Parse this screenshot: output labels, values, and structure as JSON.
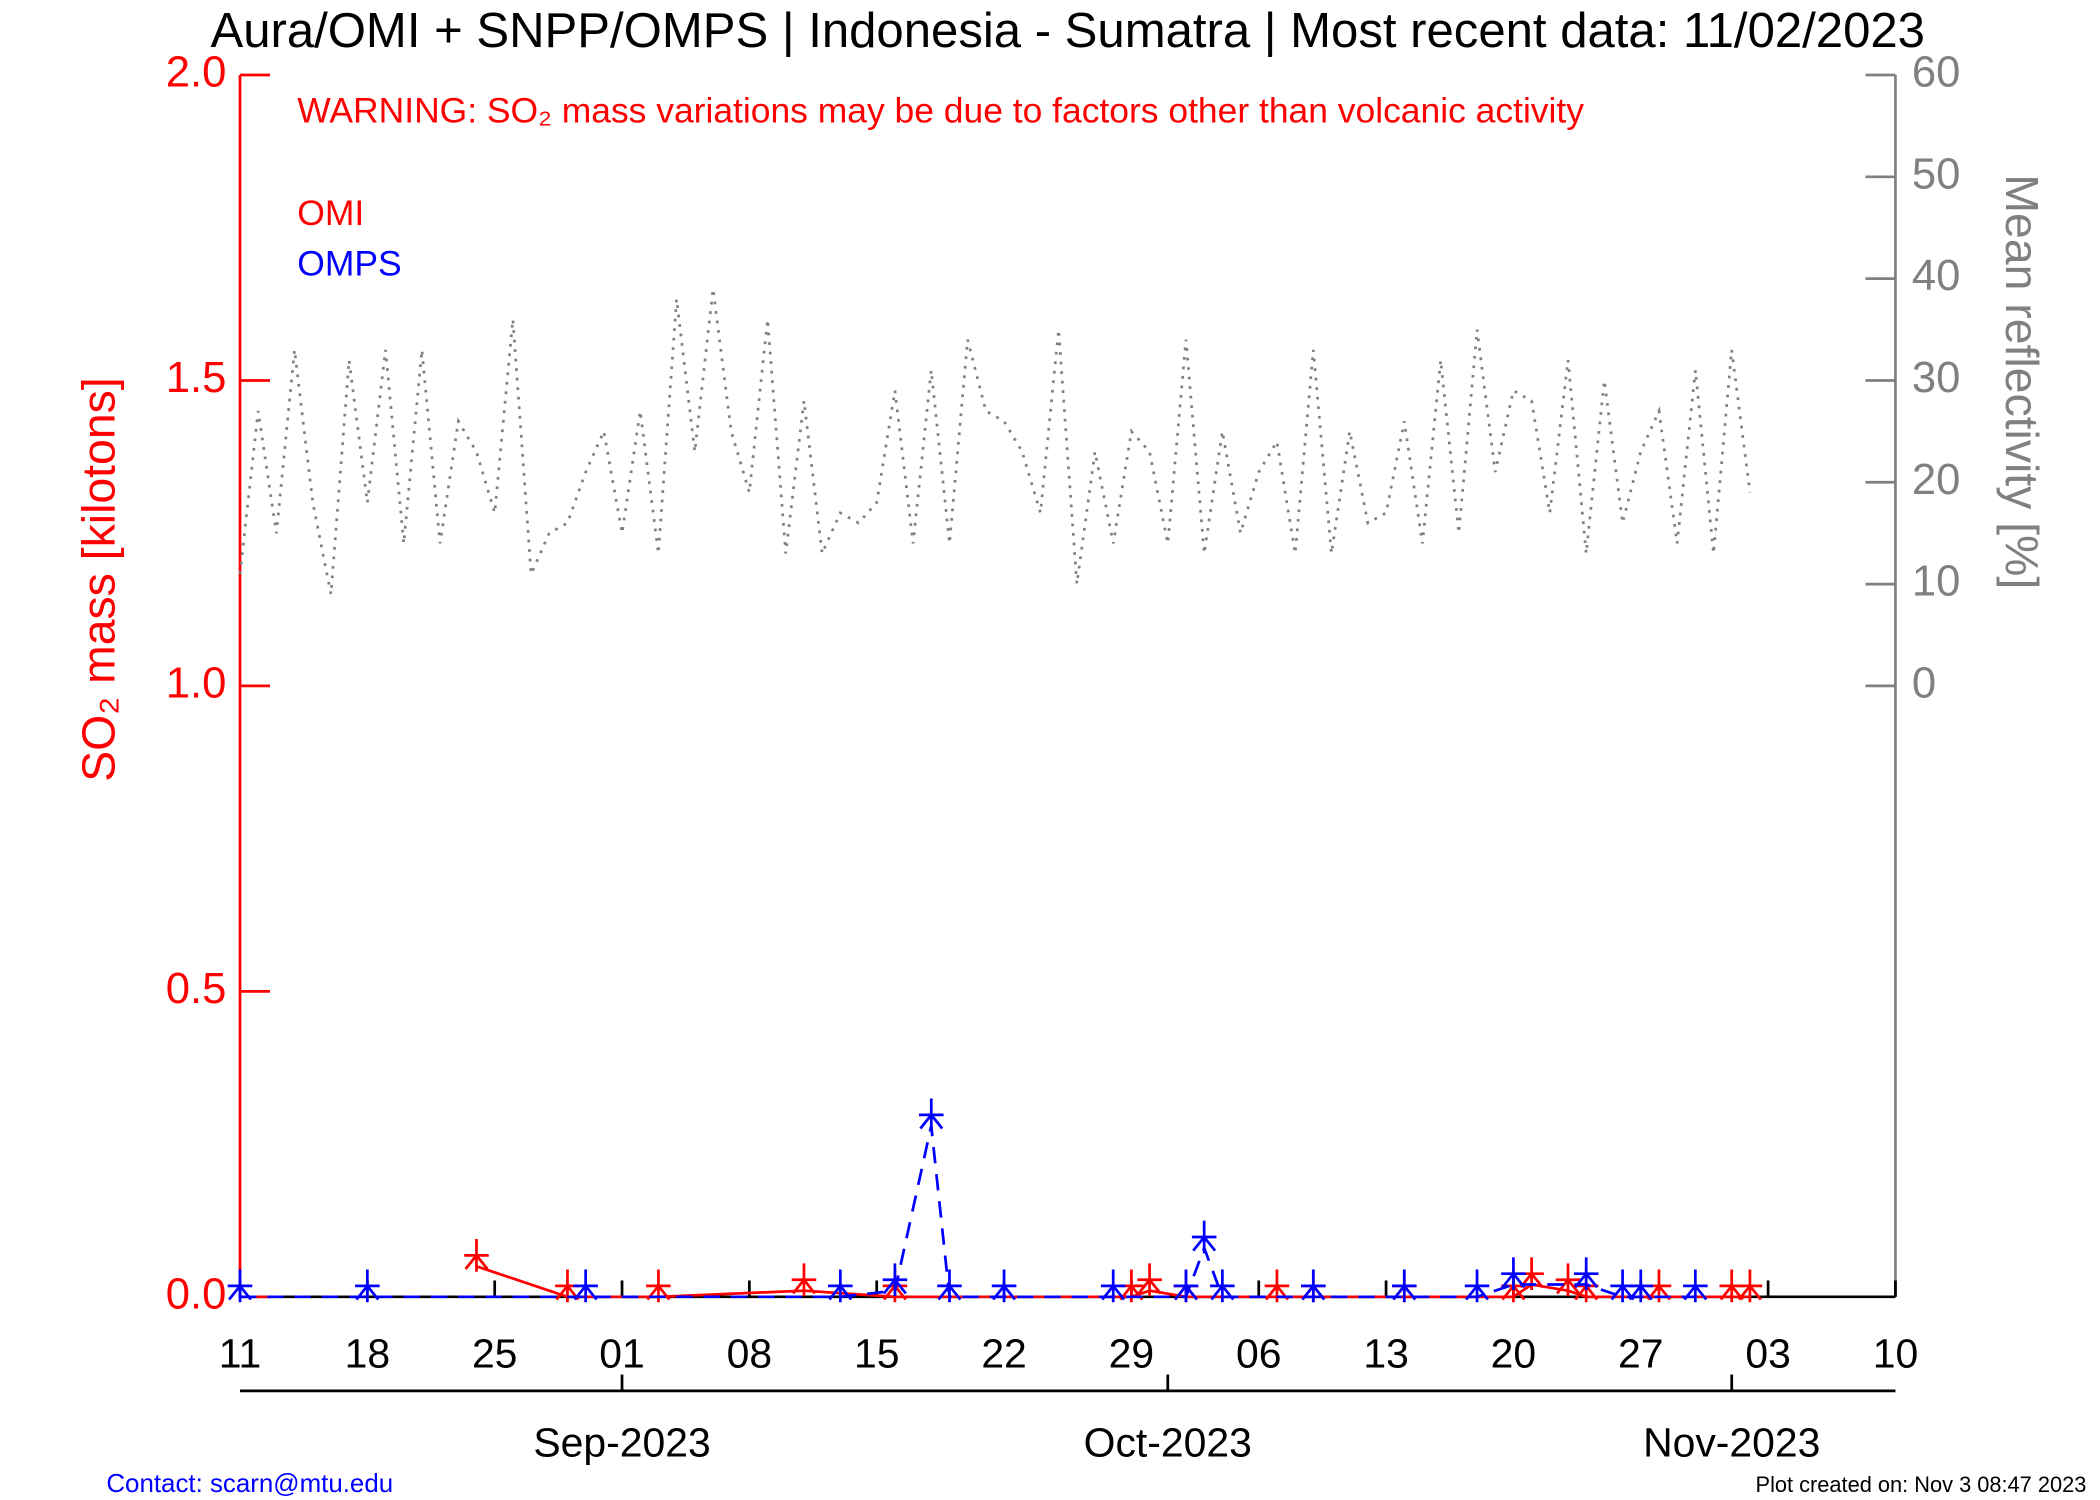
{
  "chart_data": {
    "type": "line",
    "title": "Aura/OMI + SNPP/OMPS | Indonesia - Sumatra | Most recent data: 11/02/2023",
    "annotation": "WARNING: SO₂ mass variations may be due to factors other than volcanic activity",
    "y_label": "SO₂ mass [kilotons]",
    "y2_label": "Mean reflectivity [%]",
    "contact": "Contact: scarn@mtu.edu",
    "created": "Plot created on: Nov  3 08:47 2023",
    "xlim": [
      "2023-08-11",
      "2023-11-10"
    ],
    "xticks": [
      {
        "value": "2023-08-11",
        "label": "11"
      },
      {
        "value": "2023-08-18",
        "label": "18"
      },
      {
        "value": "2023-08-25",
        "label": "25"
      },
      {
        "value": "2023-09-01",
        "label": "01"
      },
      {
        "value": "2023-09-08",
        "label": "08"
      },
      {
        "value": "2023-09-15",
        "label": "15"
      },
      {
        "value": "2023-09-22",
        "label": "22"
      },
      {
        "value": "2023-09-29",
        "label": "29"
      },
      {
        "value": "2023-10-06",
        "label": "06"
      },
      {
        "value": "2023-10-13",
        "label": "13"
      },
      {
        "value": "2023-10-20",
        "label": "20"
      },
      {
        "value": "2023-10-27",
        "label": "27"
      },
      {
        "value": "2023-11-03",
        "label": "03"
      },
      {
        "value": "2023-11-10",
        "label": "10"
      }
    ],
    "month_ticks": [
      {
        "value": "2023-09-01",
        "label": "Sep-2023"
      },
      {
        "value": "2023-10-01",
        "label": "Oct-2023"
      },
      {
        "value": "2023-11-01",
        "label": "Nov-2023"
      }
    ],
    "ylim": [
      0,
      2
    ],
    "yticks": [
      {
        "value": 0,
        "label": "0.0"
      },
      0.5,
      {
        "value": 1,
        "label": "1.0"
      },
      1.5,
      {
        "value": 2,
        "label": "2.0"
      }
    ],
    "y2lim": [
      -60,
      60
    ],
    "y2ticks": [
      0,
      10,
      20,
      30,
      40,
      50,
      60
    ],
    "series": [
      {
        "name": "OMI",
        "color": "#ff0000",
        "style": "solid",
        "x": [
          "2023-08-24",
          "2023-08-29",
          "2023-09-03",
          "2023-09-11",
          "2023-09-16",
          "2023-09-29",
          "2023-09-30",
          "2023-10-02",
          "2023-10-07",
          "2023-10-09",
          "2023-10-14",
          "2023-10-20",
          "2023-10-21",
          "2023-10-23",
          "2023-10-24",
          "2023-10-28",
          "2023-11-01",
          "2023-11-02"
        ],
        "values": [
          0.05,
          0,
          0,
          0.01,
          0,
          0,
          0.01,
          0,
          0,
          0,
          0,
          0,
          0.02,
          0.01,
          0,
          0,
          0,
          0
        ]
      },
      {
        "name": "OMPS",
        "color": "#0000ff",
        "style": "dashed",
        "x": [
          "2023-08-11",
          "2023-08-18",
          "2023-08-30",
          "2023-09-13",
          "2023-09-16",
          "2023-09-18",
          "2023-09-19",
          "2023-09-22",
          "2023-09-28",
          "2023-10-02",
          "2023-10-03",
          "2023-10-04",
          "2023-10-09",
          "2023-10-14",
          "2023-10-18",
          "2023-10-20",
          "2023-10-24",
          "2023-10-26",
          "2023-10-27",
          "2023-10-30"
        ],
        "values": [
          0,
          0,
          0,
          0,
          0.01,
          0.28,
          0,
          0,
          0,
          0,
          0.08,
          0,
          0,
          0,
          0,
          0.02,
          0.02,
          0,
          0,
          0
        ]
      },
      {
        "color": "#808080",
        "style": "dotted",
        "axis": "y2",
        "x": [
          "2023-08-11",
          "2023-08-12",
          "2023-08-13",
          "2023-08-14",
          "2023-08-15",
          "2023-08-16",
          "2023-08-17",
          "2023-08-18",
          "2023-08-19",
          "2023-08-20",
          "2023-08-21",
          "2023-08-22",
          "2023-08-23",
          "2023-08-24",
          "2023-08-25",
          "2023-08-26",
          "2023-08-27",
          "2023-08-28",
          "2023-08-29",
          "2023-08-30",
          "2023-08-31",
          "2023-09-01",
          "2023-09-02",
          "2023-09-03",
          "2023-09-04",
          "2023-09-05",
          "2023-09-06",
          "2023-09-07",
          "2023-09-08",
          "2023-09-09",
          "2023-09-10",
          "2023-09-11",
          "2023-09-12",
          "2023-09-13",
          "2023-09-14",
          "2023-09-15",
          "2023-09-16",
          "2023-09-17",
          "2023-09-18",
          "2023-09-19",
          "2023-09-20",
          "2023-09-21",
          "2023-09-22",
          "2023-09-23",
          "2023-09-24",
          "2023-09-25",
          "2023-09-26",
          "2023-09-27",
          "2023-09-28",
          "2023-09-29",
          "2023-09-30",
          "2023-10-01",
          "2023-10-02",
          "2023-10-03",
          "2023-10-04",
          "2023-10-05",
          "2023-10-06",
          "2023-10-07",
          "2023-10-08",
          "2023-10-09",
          "2023-10-10",
          "2023-10-11",
          "2023-10-12",
          "2023-10-13",
          "2023-10-14",
          "2023-10-15",
          "2023-10-16",
          "2023-10-17",
          "2023-10-18",
          "2023-10-19",
          "2023-10-20",
          "2023-10-21",
          "2023-10-22",
          "2023-10-23",
          "2023-10-24",
          "2023-10-25",
          "2023-10-26",
          "2023-10-27",
          "2023-10-28",
          "2023-10-29",
          "2023-10-30",
          "2023-10-31",
          "2023-11-01",
          "2023-11-02"
        ],
        "values": [
          11,
          27,
          15,
          33,
          18,
          9,
          32,
          18,
          33,
          14,
          33,
          14,
          26,
          23,
          17,
          36,
          11,
          15,
          16,
          21,
          25,
          15,
          27,
          13,
          38,
          23,
          39,
          25,
          19,
          36,
          13,
          28,
          13,
          17,
          16,
          18,
          29,
          14,
          31,
          14,
          34,
          27,
          26,
          23,
          17,
          35,
          10,
          23,
          14,
          25,
          23,
          14,
          34,
          13,
          25,
          15,
          21,
          24,
          13,
          33,
          13,
          25,
          16,
          17,
          26,
          14,
          32,
          15,
          35,
          21,
          29,
          28,
          17,
          32,
          13,
          30,
          16,
          23,
          27,
          14,
          31,
          13,
          33,
          19
        ]
      }
    ]
  }
}
